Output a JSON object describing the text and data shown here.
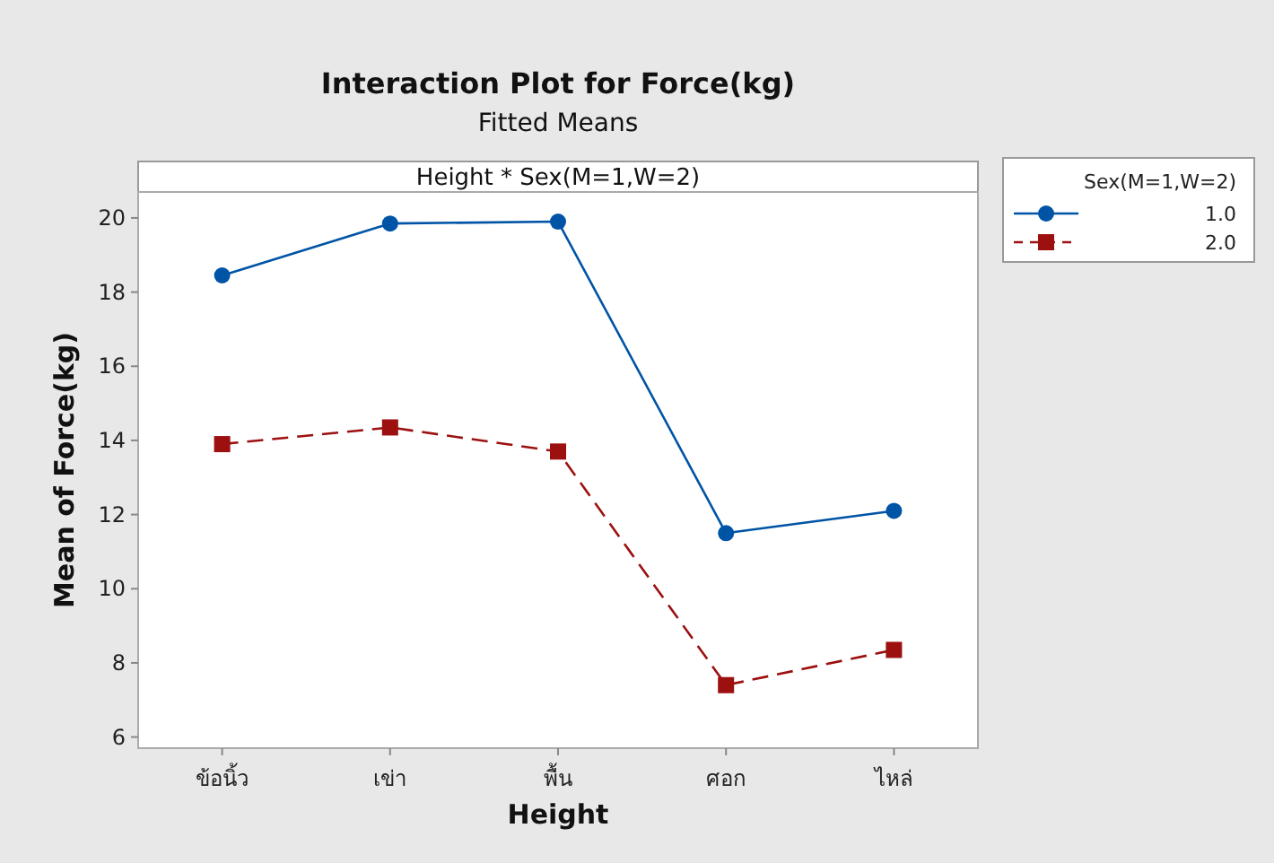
{
  "chart_data": {
    "type": "line",
    "title": "Interaction Plot for Force(kg)",
    "subtitle": "Fitted Means",
    "annotations": [
      "Height * Sex(M=1,W=2)"
    ],
    "xlabel": "Height",
    "ylabel": "Mean of Force(kg)",
    "legend_title": "Sex(M=1,W=2)",
    "legend": "right",
    "categories": [
      "ข้อนิ้ว",
      "เข่า",
      "พื้น",
      "ศอก",
      "ไหล่"
    ],
    "ylim": [
      5.7,
      20.7
    ],
    "yticks": [
      6,
      8,
      10,
      12,
      14,
      16,
      18,
      20
    ],
    "series": [
      {
        "name": "1.0",
        "color": "#0054a6",
        "marker": "circle",
        "line_style": "solid",
        "values": [
          18.45,
          19.85,
          19.9,
          11.5,
          12.1
        ]
      },
      {
        "name": "2.0",
        "color": "#9c1010",
        "marker": "square",
        "line_style": "dashed",
        "values": [
          13.9,
          14.35,
          13.7,
          7.4,
          8.35
        ]
      }
    ]
  }
}
